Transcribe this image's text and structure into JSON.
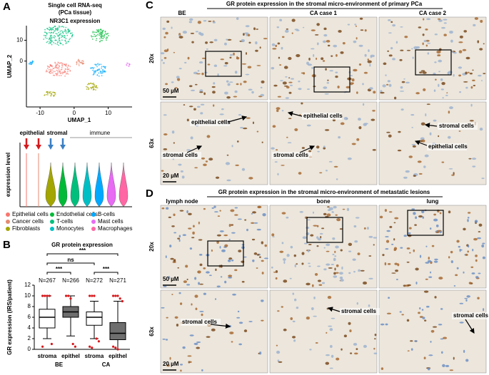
{
  "panel_a": {
    "letter": "A",
    "title": "Single cell RNA-seq",
    "subtitle": "(PCa tissue)",
    "plot_title": "NR3C1 expression",
    "xlabel": "UMAP_1",
    "ylabel": "UMAP_2",
    "xticks": [
      -10,
      0,
      10
    ],
    "yticks": [
      0,
      10
    ],
    "xlim": [
      -14,
      17
    ],
    "ylim": [
      -22,
      17
    ],
    "violin_ylabel": "expression level",
    "groups": [
      "epithelial",
      "stromal",
      "immune"
    ],
    "legend": [
      {
        "name": "Epithelial cells",
        "color": "#f8766d"
      },
      {
        "name": "Cancer cells",
        "color": "#e58a70"
      },
      {
        "name": "Fibroblasts",
        "color": "#a3a500"
      },
      {
        "name": "Endothelial cells",
        "color": "#00ba38"
      },
      {
        "name": "T-cells",
        "color": "#00bf7d"
      },
      {
        "name": "Monocytes",
        "color": "#00bfc4"
      },
      {
        "name": "B-cells",
        "color": "#00a9ff"
      },
      {
        "name": "Mast cells",
        "color": "#e76bf3"
      },
      {
        "name": "Macrophages",
        "color": "#ff67a4"
      }
    ]
  },
  "chart_data": {
    "type": "box",
    "letter": "B",
    "title": "GR protein expression",
    "ylabel": "GR expression (IRS/patient)",
    "categories": [
      "stroma",
      "epithel",
      "stroma",
      "epithel"
    ],
    "groups": [
      "BE",
      "CA"
    ],
    "n_labels": [
      "N=267",
      "N=266",
      "N=272",
      "N=271"
    ],
    "significance": [
      "***",
      "ns",
      "***",
      "***"
    ],
    "whisker_low": [
      2,
      2.5,
      2,
      0
    ],
    "q1": [
      4,
      6,
      4.5,
      1.8
    ],
    "median": [
      6,
      7,
      6,
      3
    ],
    "q3": [
      7.5,
      8,
      7,
      5
    ],
    "whisker_high": [
      10,
      10,
      9,
      9
    ],
    "outliers": [
      [
        10,
        10,
        10,
        10,
        1,
        0.5
      ],
      [
        10,
        10,
        9.5,
        1,
        0.5
      ],
      [
        10,
        10,
        10,
        2,
        1.5,
        0.5,
        0.3
      ],
      [
        10,
        10,
        10,
        9.5,
        9,
        0.5,
        0.3,
        0
      ]
    ],
    "box_colors": [
      "#ffffff",
      "#6e6e6e",
      "#ffffff",
      "#6e6e6e"
    ],
    "outlier_color": "#d7191c",
    "ylim": [
      0,
      12
    ],
    "yticks": [
      0,
      2,
      4,
      6,
      8,
      10,
      12
    ]
  },
  "panel_c": {
    "letter": "C",
    "title": "GR protein expression in the stromal micro-environment of primary PCa",
    "columns": [
      "BE",
      "CA case 1",
      "CA case 2"
    ],
    "rows": [
      "20x",
      "63x"
    ],
    "scale_bars": [
      "50 µM",
      "20 µM"
    ],
    "annotations": [
      "epithelial cells",
      "stromal cells",
      "epithelial cells",
      "stromal cells",
      "stromal cells",
      "epithelial cells"
    ]
  },
  "panel_d": {
    "letter": "D",
    "title": "GR protein expression in the stromal micro-environment of metastatic lesions",
    "columns": [
      "lymph node",
      "bone",
      "lung"
    ],
    "rows": [
      "20x",
      "63x"
    ],
    "scale_bars": [
      "50 µM",
      "20 µM"
    ],
    "annotations": [
      "stromal cells",
      "stromal cells",
      "stromal cells"
    ]
  }
}
